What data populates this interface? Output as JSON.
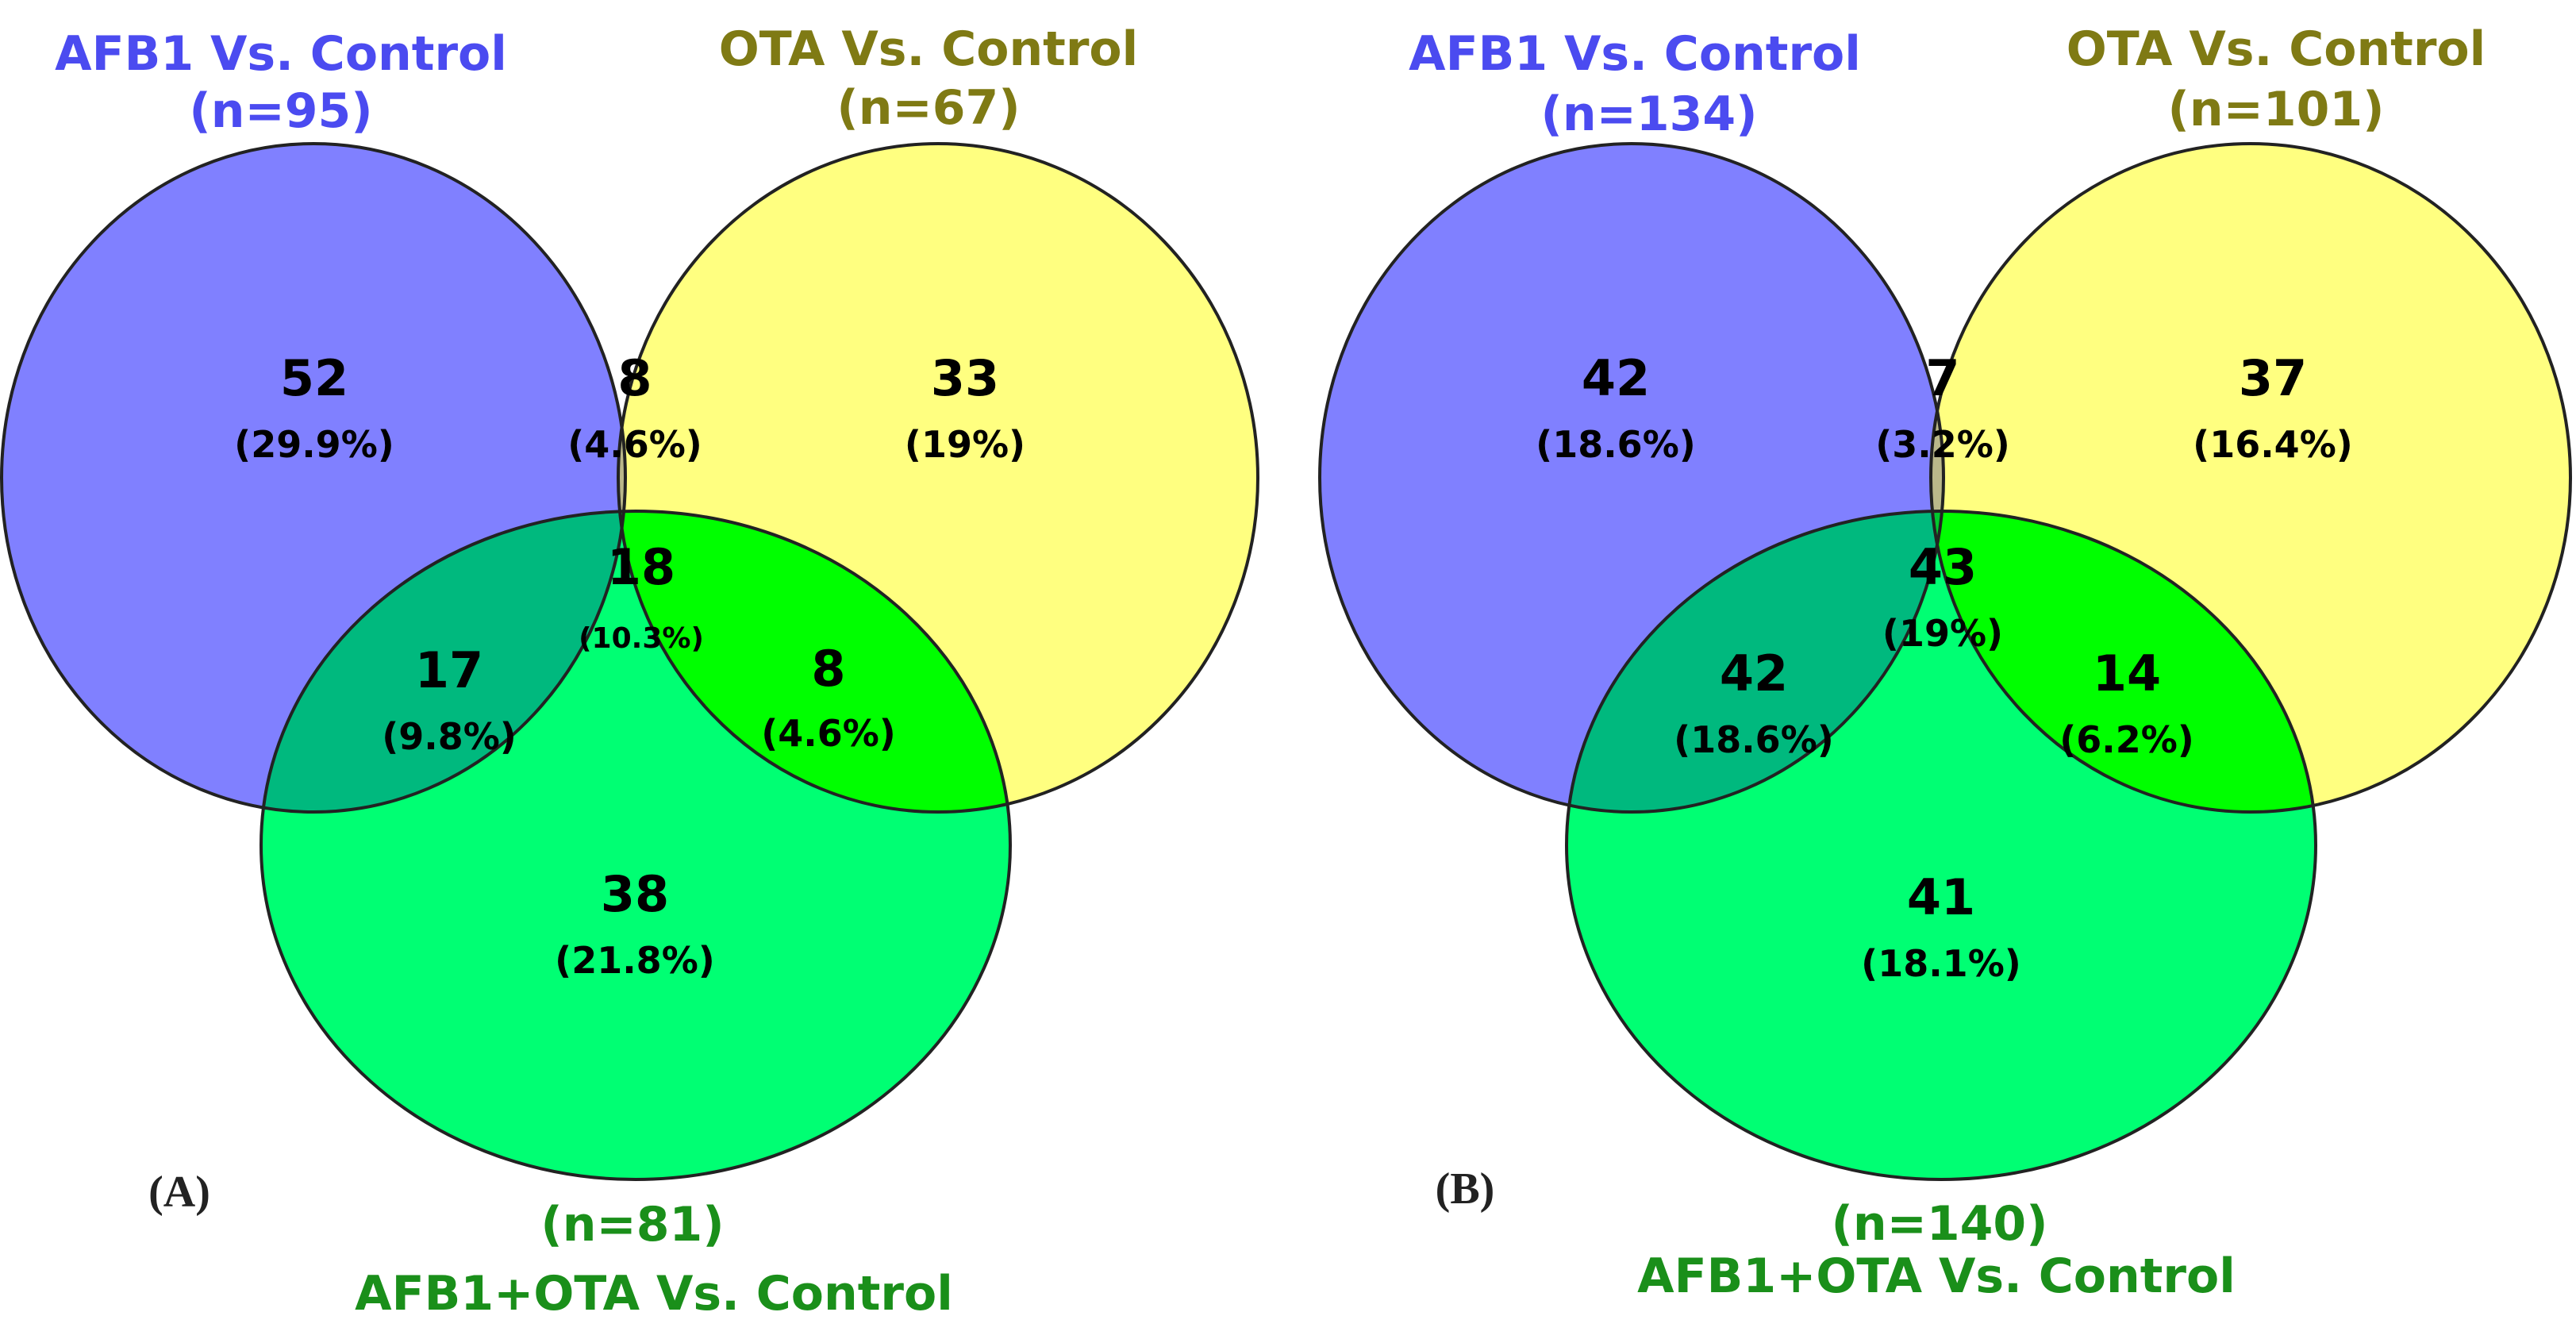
{
  "colors": {
    "afb1": "#8080ff",
    "ota": "#ffff80",
    "combo": "#00ff73",
    "afb1_ota": "#bab88a",
    "afb1_combo": "#00b97e",
    "ota_combo": "#00ff00",
    "all": "#00c82e",
    "afb1_title": "#4b4bf0",
    "ota_title": "#7f7a14",
    "combo_title": "#1a8f1a"
  },
  "panels": [
    {
      "label": "(A)",
      "sets": {
        "afb1": {
          "title": "AFB1 Vs. Control",
          "n": "(n=95)"
        },
        "ota": {
          "title": "OTA Vs. Control",
          "n": "(n=67)"
        },
        "combo": {
          "title": "AFB1+OTA Vs. Control",
          "n": "(n=81)"
        }
      },
      "regions": {
        "afb1_only": {
          "count": "52",
          "pct": "(29.9%)"
        },
        "afb1_ota": {
          "count": "8",
          "pct": "(4.6%)"
        },
        "ota_only": {
          "count": "33",
          "pct": "(19%)"
        },
        "all": {
          "count": "18",
          "pct": "(10.3%)"
        },
        "afb1_combo": {
          "count": "17",
          "pct": "(9.8%)"
        },
        "ota_combo": {
          "count": "8",
          "pct": "(4.6%)"
        },
        "combo_only": {
          "count": "38",
          "pct": "(21.8%)"
        }
      }
    },
    {
      "label": "(B)",
      "sets": {
        "afb1": {
          "title": "AFB1 Vs. Control",
          "n": "(n=134)"
        },
        "ota": {
          "title": "OTA Vs. Control",
          "n": "(n=101)"
        },
        "combo": {
          "title": "AFB1+OTA Vs. Control",
          "n": "(n=140)"
        }
      },
      "regions": {
        "afb1_only": {
          "count": "42",
          "pct": "(18.6%)"
        },
        "afb1_ota": {
          "count": "7",
          "pct": "(3.2%)"
        },
        "ota_only": {
          "count": "37",
          "pct": "(16.4%)"
        },
        "all": {
          "count": "43",
          "pct": "(19%)"
        },
        "afb1_combo": {
          "count": "42",
          "pct": "(18.6%)"
        },
        "ota_combo": {
          "count": "14",
          "pct": "(6.2%)"
        },
        "combo_only": {
          "count": "41",
          "pct": "(18.1%)"
        }
      }
    }
  ]
}
